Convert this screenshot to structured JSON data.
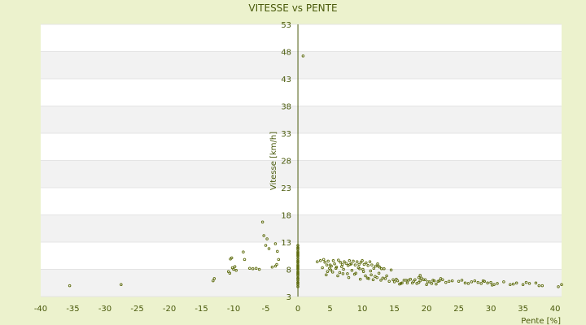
{
  "chart_data": {
    "type": "scatter",
    "title": "VITESSE vs PENTE",
    "xlabel": "Pente [%]",
    "ylabel": "Vitesse [km/h]",
    "xlim": [
      -40,
      41
    ],
    "ylim": [
      3,
      53
    ],
    "x_ticks": [
      -40,
      -35,
      -30,
      -25,
      -20,
      -15,
      -10,
      -5,
      0,
      5,
      10,
      15,
      20,
      25,
      30,
      35,
      40
    ],
    "y_ticks": [
      3,
      8,
      13,
      18,
      23,
      28,
      33,
      38,
      43,
      48,
      53
    ],
    "grid": true,
    "legend": "none",
    "colors": {
      "background": "#ecf2cd",
      "plot_background": "#ffffff",
      "band": "#f2f2f2",
      "axis": "#4a5a0c",
      "marker": "#5d6b0c"
    },
    "series": [
      {
        "x": [
          -35.5,
          -27.5,
          -13.2,
          -13.0,
          -10.8,
          -10.5,
          -10.2,
          -10.0,
          -10.6,
          -10.3,
          -9.8,
          -9.6,
          -8.5,
          -8.3,
          -7.5,
          -7.0,
          -6.5,
          -6.0,
          -5.5,
          -5.3,
          -5.0,
          -4.8,
          -4.5,
          -4.0,
          -3.5,
          -3.2,
          -3.0,
          -3.3,
          -3.5,
          0,
          0,
          0,
          0,
          0,
          0,
          0,
          0,
          0,
          0,
          0,
          0,
          0,
          0,
          0,
          0,
          0,
          0,
          0,
          0,
          0,
          0,
          0,
          0,
          0,
          0,
          0,
          0,
          0,
          0,
          0.8,
          3.0,
          3.5,
          4.0,
          4.2,
          4.5,
          4.7,
          4.9,
          5.2,
          5.5,
          5.7,
          6.0,
          6.3,
          6.6,
          6.9,
          7.2,
          7.5,
          7.8,
          8.0,
          8.3,
          8.6,
          8.9,
          9.2,
          9.5,
          9.8,
          10.0,
          10.3,
          10.6,
          10.9,
          11.2,
          11.5,
          11.8,
          12.1,
          12.4,
          12.7,
          13.0,
          3.8,
          4.6,
          5.1,
          5.9,
          6.5,
          7.1,
          7.7,
          8.4,
          9.0,
          9.6,
          10.2,
          10.8,
          11.4,
          12.0,
          12.6,
          13.2,
          13.8,
          4.4,
          5.4,
          6.2,
          7.0,
          7.9,
          8.8,
          9.7,
          10.5,
          11.0,
          11.7,
          12.3,
          12.9,
          13.6,
          14.2,
          14.8,
          5.0,
          6.8,
          8.1,
          9.4,
          10.1,
          11.3,
          12.5,
          13.4,
          14.5,
          15.0,
          15.5,
          16.0,
          16.5,
          17.0,
          17.5,
          18.0,
          18.5,
          19.0,
          19.5,
          20.0,
          20.5,
          21.0,
          21.5,
          22.0,
          22.5,
          23.0,
          24.0,
          15.3,
          16.2,
          17.2,
          18.2,
          19.2,
          20.2,
          21.2,
          22.2,
          23.5,
          15.8,
          16.8,
          17.8,
          18.8,
          19.8,
          20.8,
          21.8,
          25.0,
          25.5,
          26.0,
          27.0,
          27.5,
          28.0,
          28.5,
          29.0,
          29.5,
          30.0,
          30.5,
          31.0,
          32.0,
          33.0,
          34.0,
          35.0,
          36.0,
          37.0,
          38.0,
          40.5,
          41.0,
          26.5,
          28.8,
          30.2,
          33.5,
          35.5,
          37.5,
          18.8,
          19.0
        ],
        "y": [
          5.0,
          5.2,
          5.9,
          6.3,
          7.6,
          9.9,
          8.3,
          8.0,
          7.3,
          10.1,
          8.5,
          7.8,
          11.2,
          9.8,
          8.2,
          8.1,
          8.2,
          8.0,
          16.7,
          14.2,
          12.4,
          13.6,
          11.8,
          8.4,
          12.7,
          11.3,
          9.8,
          8.9,
          8.6,
          4.8,
          5.2,
          5.6,
          6.0,
          6.4,
          6.8,
          7.2,
          7.6,
          8.0,
          8.4,
          8.8,
          9.2,
          9.6,
          10.0,
          10.4,
          10.8,
          11.2,
          11.6,
          12.0,
          12.4,
          10.6,
          9.4,
          8.2,
          7.1,
          6.3,
          5.5,
          7.4,
          8.6,
          11.0,
          11.9,
          47.2,
          9.4,
          9.6,
          9.8,
          9.3,
          8.8,
          9.5,
          8.2,
          8.6,
          9.6,
          9.0,
          8.4,
          9.7,
          9.3,
          8.9,
          9.4,
          9.1,
          8.7,
          9.6,
          9.0,
          9.5,
          8.8,
          9.4,
          8.9,
          9.3,
          9.6,
          8.9,
          9.2,
          8.7,
          9.4,
          8.8,
          8.2,
          8.6,
          9.0,
          8.4,
          8.1,
          8.3,
          7.6,
          7.9,
          8.2,
          7.4,
          8.0,
          7.2,
          7.8,
          7.3,
          8.1,
          7.6,
          6.4,
          7.0,
          6.7,
          7.3,
          6.4,
          6.8,
          7.0,
          7.5,
          6.8,
          7.2,
          6.5,
          7.1,
          6.2,
          6.8,
          6.3,
          6.1,
          6.5,
          6.0,
          6.3,
          5.8,
          6.1,
          8.8,
          8.5,
          8.9,
          8.3,
          8.0,
          7.7,
          8.6,
          8.1,
          7.9,
          5.7,
          5.9,
          5.4,
          6.0,
          5.5,
          6.2,
          5.8,
          5.4,
          5.9,
          6.1,
          5.2,
          5.7,
          6.0,
          5.3,
          5.9,
          6.1,
          5.6,
          5.9,
          6.2,
          5.5,
          6.0,
          6.1,
          6.4,
          5.7,
          5.9,
          6.3,
          5.8,
          5.3,
          6.0,
          5.5,
          5.6,
          6.1,
          5.4,
          5.8,
          5.8,
          6.0,
          5.5,
          5.7,
          5.9,
          5.6,
          5.4,
          5.8,
          5.5,
          5.6,
          5.2,
          5.4,
          5.7,
          5.2,
          5.5,
          5.2,
          5.4,
          5.5,
          5.0,
          4.8,
          5.2,
          5.4,
          5.9,
          5.1,
          5.3,
          5.6,
          5.0,
          6.5,
          6.9
        ]
      }
    ]
  }
}
